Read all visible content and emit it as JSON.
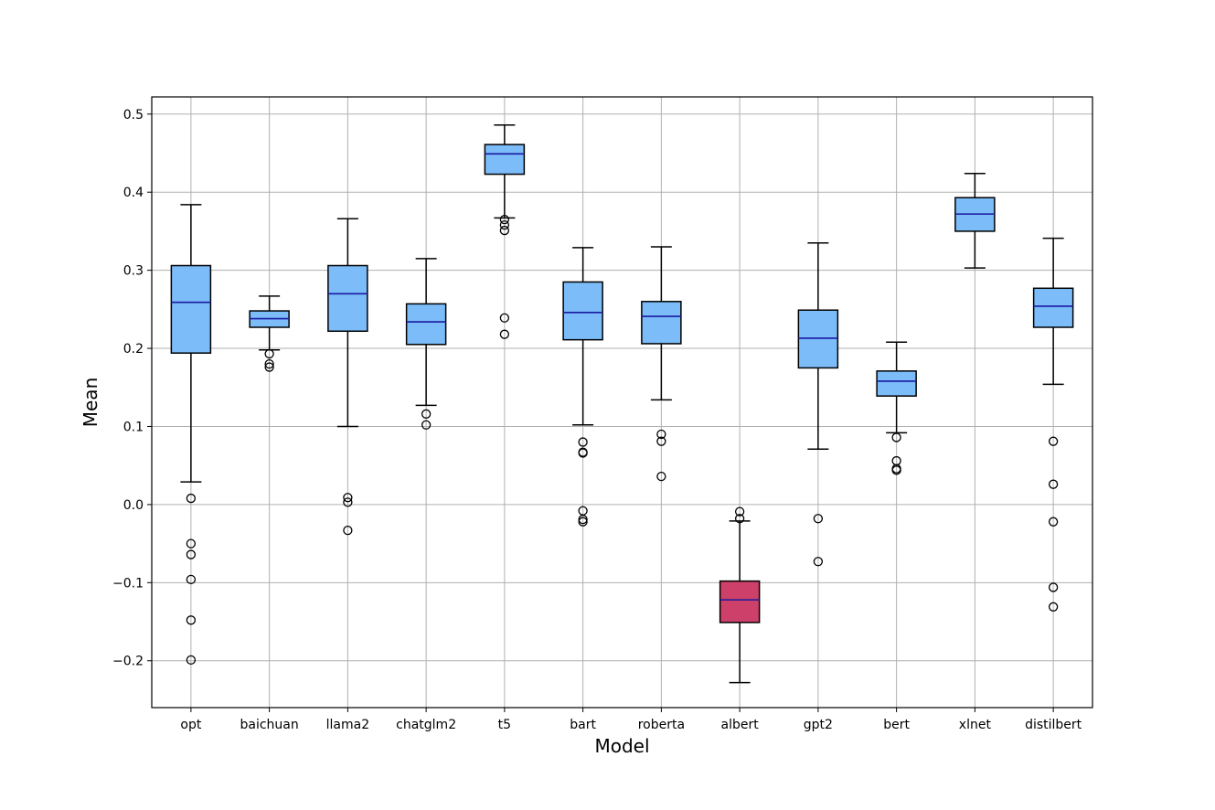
{
  "chart_data": {
    "type": "box",
    "xlabel": "Model",
    "ylabel": "Mean",
    "ylim": [
      -0.26,
      0.522
    ],
    "yticks": [
      0.5,
      0.4,
      0.3,
      0.2,
      0.1,
      0.0,
      -0.1,
      -0.2
    ],
    "ytick_labels": [
      "0.5",
      "0.4",
      "0.3",
      "0.2",
      "0.1",
      "0.0",
      "−0.1",
      "−0.2"
    ],
    "grid": true,
    "colors": {
      "box_fill": "#7bbcf9",
      "highlight_fill": "#cc406a",
      "median": "#1a1aa0",
      "grid": "#b0b0b0",
      "edge": "#000000"
    },
    "categories": [
      "opt",
      "baichuan",
      "llama2",
      "chatglm2",
      "t5",
      "bart",
      "roberta",
      "albert",
      "gpt2",
      "bert",
      "xlnet",
      "distilbert"
    ],
    "boxes": [
      {
        "name": "opt",
        "whisker_low": 0.029,
        "q1": 0.194,
        "median": 0.259,
        "q3": 0.306,
        "whisker_high": 0.384,
        "outliers": [
          0.008,
          -0.05,
          -0.064,
          -0.096,
          -0.148,
          -0.199
        ],
        "highlight": false
      },
      {
        "name": "baichuan",
        "whisker_low": 0.198,
        "q1": 0.227,
        "median": 0.238,
        "q3": 0.248,
        "whisker_high": 0.267,
        "outliers": [
          0.193,
          0.18,
          0.176
        ],
        "highlight": false
      },
      {
        "name": "llama2",
        "whisker_low": 0.1,
        "q1": 0.222,
        "median": 0.27,
        "q3": 0.306,
        "whisker_high": 0.366,
        "outliers": [
          0.009,
          0.003,
          -0.033
        ],
        "highlight": false
      },
      {
        "name": "chatglm2",
        "whisker_low": 0.127,
        "q1": 0.205,
        "median": 0.234,
        "q3": 0.257,
        "whisker_high": 0.315,
        "outliers": [
          0.116,
          0.102
        ],
        "highlight": false
      },
      {
        "name": "t5",
        "whisker_low": 0.367,
        "q1": 0.423,
        "median": 0.449,
        "q3": 0.461,
        "whisker_high": 0.486,
        "outliers": [
          0.365,
          0.358,
          0.351,
          0.239,
          0.218
        ],
        "highlight": false
      },
      {
        "name": "bart",
        "whisker_low": 0.102,
        "q1": 0.211,
        "median": 0.246,
        "q3": 0.285,
        "whisker_high": 0.329,
        "outliers": [
          0.08,
          0.067,
          0.066,
          -0.008,
          -0.019,
          -0.022
        ],
        "highlight": false
      },
      {
        "name": "roberta",
        "whisker_low": 0.134,
        "q1": 0.206,
        "median": 0.241,
        "q3": 0.26,
        "whisker_high": 0.33,
        "outliers": [
          0.09,
          0.081,
          0.036
        ],
        "highlight": false
      },
      {
        "name": "albert",
        "whisker_low": -0.228,
        "q1": -0.151,
        "median": -0.122,
        "q3": -0.098,
        "whisker_high": -0.021,
        "outliers": [
          -0.009,
          -0.018
        ],
        "highlight": true
      },
      {
        "name": "gpt2",
        "whisker_low": 0.071,
        "q1": 0.175,
        "median": 0.213,
        "q3": 0.249,
        "whisker_high": 0.335,
        "outliers": [
          -0.018,
          -0.073
        ],
        "highlight": false
      },
      {
        "name": "bert",
        "whisker_low": 0.092,
        "q1": 0.139,
        "median": 0.158,
        "q3": 0.171,
        "whisker_high": 0.208,
        "outliers": [
          0.086,
          0.056,
          0.046,
          0.044
        ],
        "highlight": false
      },
      {
        "name": "xlnet",
        "whisker_low": 0.303,
        "q1": 0.35,
        "median": 0.372,
        "q3": 0.393,
        "whisker_high": 0.424,
        "outliers": [],
        "highlight": false
      },
      {
        "name": "distilbert",
        "whisker_low": 0.154,
        "q1": 0.227,
        "median": 0.254,
        "q3": 0.277,
        "whisker_high": 0.341,
        "outliers": [
          0.081,
          0.026,
          -0.022,
          -0.106,
          -0.131
        ],
        "highlight": false
      }
    ]
  }
}
